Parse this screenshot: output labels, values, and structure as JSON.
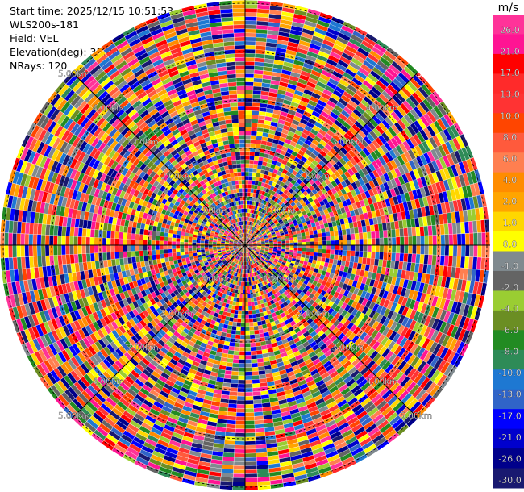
{
  "header": {
    "start_time": "Start time: 2025/12/15 10:51:53",
    "instrument": "WLS200s-181",
    "field": "Field: VEL",
    "elevation": "Elevation(deg): 35.00",
    "nrays": "NRays: 120"
  },
  "chart_data": {
    "type": "heatmap",
    "projection": "polar-ppi",
    "field": "VEL",
    "unit": "m/s",
    "n_rays": 120,
    "range_ring_labels": [
      "1.00km",
      "2.00km",
      "3.00km",
      "4.00km",
      "5.00km"
    ],
    "range_ring_label_clipped": "5.",
    "colorbar": {
      "unit": "m/s",
      "tick_labels": [
        "26.0",
        "21.0",
        "17.0",
        "13.0",
        "10.0",
        "8.0",
        "6.0",
        "4.0",
        "2.0",
        "1.0",
        "0.0",
        "-1.0",
        "-2.0",
        "-4.0",
        "-6.0",
        "-8.0",
        "-10.0",
        "-13.0",
        "-17.0",
        "-21.0",
        "-26.0",
        "-30.0"
      ],
      "colors": [
        "#ff3399",
        "#ff1493",
        "#ff0000",
        "#ff2a2a",
        "#ff3333",
        "#ff4500",
        "#ff5a3c",
        "#ff7f50",
        "#ff8c00",
        "#ffa500",
        "#ffd700",
        "#ffff00",
        "#808a8f",
        "#646464",
        "#9acd32",
        "#6b8e23",
        "#228b22",
        "#2e8b57",
        "#1e78d2",
        "#3064c8",
        "#0000ff",
        "#0000cd",
        "#00008b",
        "#191970"
      ]
    },
    "gates_per_ray_visible": 60
  }
}
